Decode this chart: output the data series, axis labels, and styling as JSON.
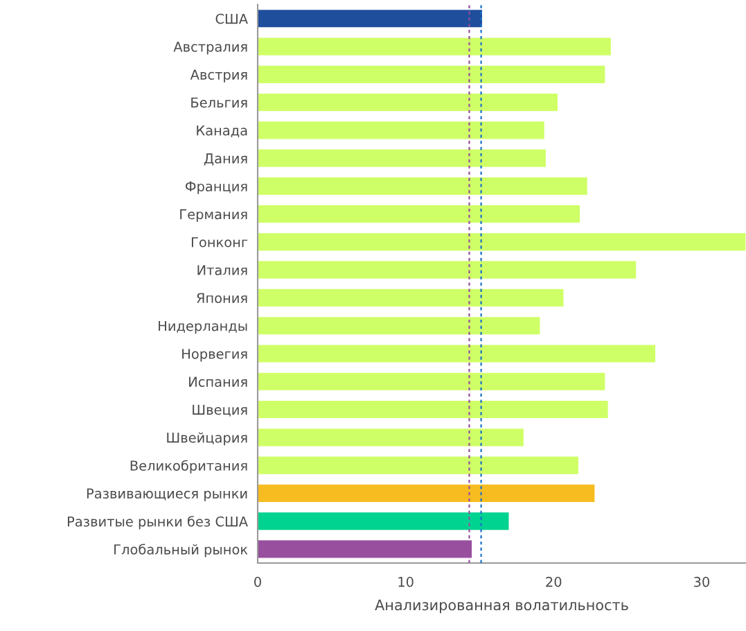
{
  "chart_data": {
    "type": "bar",
    "orientation": "horizontal",
    "xlabel": "Анализированная волатильность",
    "categories": [
      "США",
      "Австралия",
      "Австрия",
      "Бельгия",
      "Канада",
      "Дания",
      "Франция",
      "Германия",
      "Гонконг",
      "Италия",
      "Япония",
      "Нидерланды",
      "Норвегия",
      "Испания",
      "Швеция",
      "Швейцария",
      "Великобритания",
      "Развивающиеся рынки",
      "Развитые рынки без США",
      "Глобальный рынок"
    ],
    "values": [
      15.2,
      23.9,
      23.5,
      20.3,
      19.4,
      19.5,
      22.3,
      21.8,
      33,
      25.6,
      20.7,
      19.1,
      26.9,
      23.5,
      23.7,
      18.0,
      21.7,
      22.8,
      17.0,
      14.5
    ],
    "colors": [
      "#1f4e9c",
      "#cfff66",
      "#cfff66",
      "#cfff66",
      "#cfff66",
      "#cfff66",
      "#cfff66",
      "#cfff66",
      "#cfff66",
      "#cfff66",
      "#cfff66",
      "#cfff66",
      "#cfff66",
      "#cfff66",
      "#cfff66",
      "#cfff66",
      "#cfff66",
      "#f7bc20",
      "#00d390",
      "#984f9e"
    ],
    "xlim": [
      0,
      33
    ],
    "xticks": [
      0,
      10,
      20,
      30
    ],
    "grid": false,
    "legend": false,
    "ref_lines": [
      {
        "axis": "x",
        "value": 14.3,
        "color": "#984f9e",
        "line_style": "dotted"
      },
      {
        "axis": "x",
        "value": 15.1,
        "color": "#1a73c8",
        "line_style": "dotted"
      }
    ]
  }
}
